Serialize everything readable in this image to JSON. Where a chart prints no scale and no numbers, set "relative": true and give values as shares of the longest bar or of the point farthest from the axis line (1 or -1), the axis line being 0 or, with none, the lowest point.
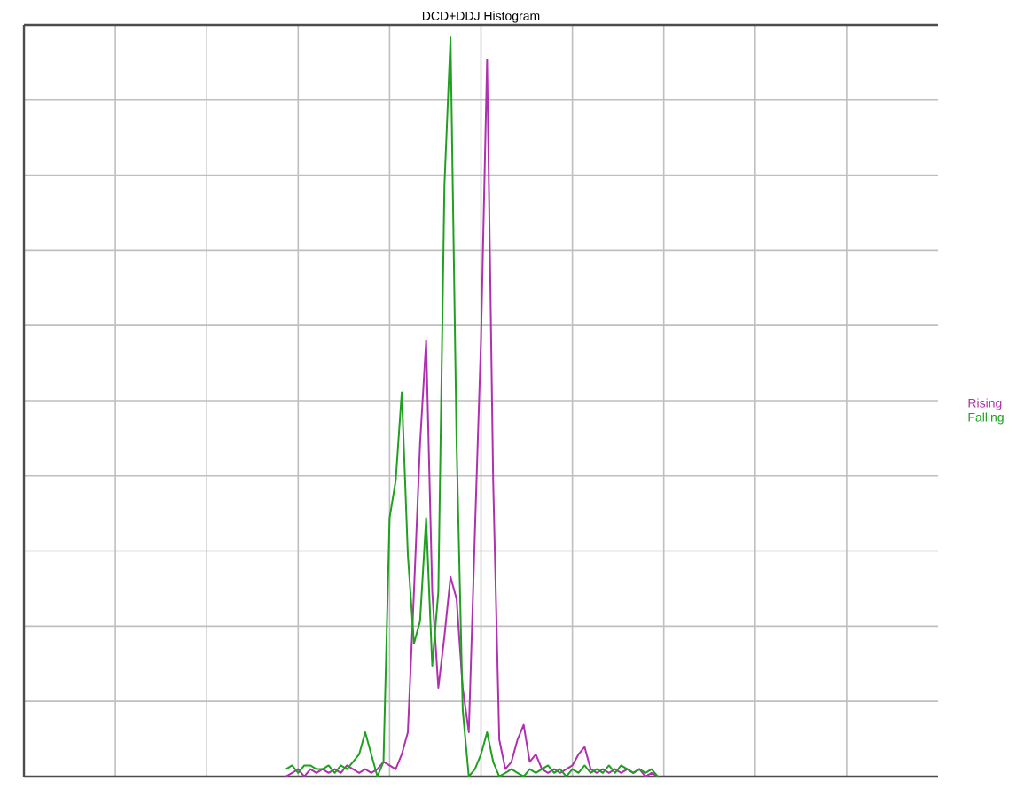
{
  "chart_data": {
    "type": "line",
    "title": "DCD+DDJ Histogram",
    "relative": true,
    "grid": true,
    "legend": "right",
    "categories": [
      null,
      null,
      null,
      null,
      null,
      null,
      null,
      null,
      null,
      null,
      null,
      null,
      null,
      null,
      null,
      null,
      null,
      null,
      null,
      null,
      null,
      null,
      null,
      null,
      null,
      null,
      null,
      null,
      null,
      null,
      null,
      null,
      null,
      null,
      null,
      null,
      null,
      null,
      null,
      null,
      null,
      null,
      null,
      null,
      null,
      null,
      null,
      null,
      null,
      null,
      null,
      null,
      null,
      null,
      null,
      null,
      null,
      null,
      null,
      null,
      null,
      null,
      null,
      null,
      null,
      null,
      null,
      null,
      null,
      null,
      null,
      null,
      null,
      null,
      null,
      null,
      null,
      null,
      null,
      null,
      null,
      null,
      null,
      null,
      null,
      null,
      null,
      null,
      null,
      null,
      null,
      null,
      null,
      null,
      null,
      null,
      null,
      null,
      null,
      null,
      null,
      null,
      null,
      null,
      null,
      null,
      null,
      null,
      null,
      null,
      null,
      null,
      null,
      null,
      null,
      null,
      null,
      null,
      null,
      null,
      null,
      null,
      null,
      null,
      null,
      null,
      null,
      null,
      null,
      null,
      null,
      null,
      null,
      null,
      null,
      null,
      null,
      null,
      null,
      null,
      null,
      null,
      null,
      null,
      null,
      null,
      null,
      null,
      null,
      null,
      null
    ],
    "series": [
      {
        "name": "Rising",
        "color": "#b030b0",
        "values": [
          null,
          null,
          null,
          null,
          null,
          null,
          null,
          null,
          null,
          null,
          null,
          null,
          null,
          null,
          null,
          null,
          null,
          null,
          null,
          null,
          null,
          null,
          null,
          null,
          null,
          null,
          null,
          null,
          null,
          null,
          null,
          null,
          null,
          null,
          null,
          null,
          null,
          null,
          null,
          null,
          null,
          null,
          null,
          0.0,
          0.005,
          0.01,
          0.0,
          0.01,
          0.005,
          0.01,
          0.005,
          0.01,
          0.005,
          0.015,
          0.01,
          0.005,
          0.01,
          0.005,
          0.01,
          0.02,
          0.015,
          0.01,
          0.03,
          0.06,
          0.25,
          0.45,
          0.59,
          0.25,
          0.12,
          0.19,
          0.27,
          0.24,
          0.12,
          0.06,
          0.33,
          0.59,
          0.97,
          0.4,
          0.05,
          0.01,
          0.02,
          0.05,
          0.07,
          0.02,
          0.03,
          0.01,
          0.005,
          0.01,
          0.005,
          0.01,
          0.015,
          0.03,
          0.04,
          0.01,
          0.005,
          0.01,
          0.005,
          0.01,
          0.005,
          0.01,
          0.005,
          0.01,
          0.0,
          0.005,
          0.0,
          null,
          null,
          null,
          null,
          null,
          null,
          null,
          null,
          null,
          null,
          null,
          null,
          null,
          null,
          null,
          null,
          null,
          null,
          null,
          null,
          null,
          null,
          null,
          null,
          null,
          null,
          null,
          null,
          null,
          null,
          null,
          null,
          null,
          null,
          null,
          null,
          null,
          null,
          null,
          null,
          null,
          null,
          null,
          null,
          null,
          null
        ]
      },
      {
        "name": "Falling",
        "color": "#20a020",
        "values": [
          null,
          null,
          null,
          null,
          null,
          null,
          null,
          null,
          null,
          null,
          null,
          null,
          null,
          null,
          null,
          null,
          null,
          null,
          null,
          null,
          null,
          null,
          null,
          null,
          null,
          null,
          null,
          null,
          null,
          null,
          null,
          null,
          null,
          null,
          null,
          null,
          null,
          null,
          null,
          null,
          null,
          null,
          null,
          0.01,
          0.015,
          0.005,
          0.015,
          0.015,
          0.01,
          0.01,
          0.015,
          0.005,
          0.015,
          0.01,
          0.02,
          0.03,
          0.06,
          0.03,
          0.0,
          0.02,
          0.35,
          0.4,
          0.52,
          0.3,
          0.18,
          0.21,
          0.35,
          0.15,
          0.25,
          0.8,
          1.0,
          0.45,
          0.09,
          0.0,
          0.01,
          0.03,
          0.06,
          0.02,
          0.0,
          0.005,
          0.01,
          0.005,
          0.0,
          0.01,
          0.005,
          0.01,
          0.015,
          0.005,
          0.01,
          0.0,
          0.01,
          0.005,
          0.015,
          0.005,
          0.01,
          0.005,
          0.015,
          0.005,
          0.015,
          0.01,
          0.005,
          0.01,
          0.005,
          0.01,
          0.0,
          null,
          null,
          null,
          null,
          null,
          null,
          null,
          null,
          null,
          null,
          null,
          null,
          null,
          null,
          null,
          null,
          null,
          null,
          null,
          null,
          null,
          null,
          null,
          null,
          null,
          null,
          null,
          null,
          null,
          null,
          null,
          null,
          null,
          null,
          null,
          null,
          null,
          null,
          null,
          null,
          null,
          null,
          null,
          null,
          null,
          null
        ]
      }
    ]
  }
}
